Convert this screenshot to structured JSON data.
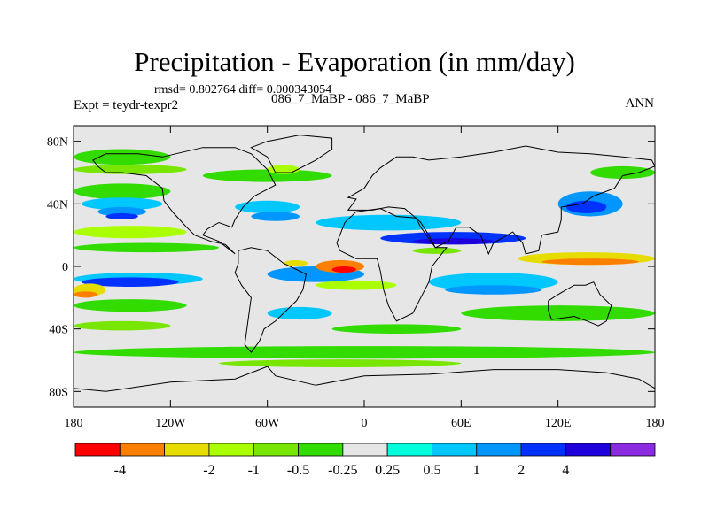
{
  "chart_data": {
    "type": "heatmap",
    "title": "Precipitation - Evaporation (in mm/day)",
    "stats_line": "rmsd= 0.802764 diff= 0.000343054",
    "expt_label": "Expt = teydr-texpr2",
    "case_label": "086_7_MaBP - 086_7_MaBP",
    "season": "ANN",
    "x_ticks": [
      {
        "value": -180,
        "label": "180"
      },
      {
        "value": -120,
        "label": "120W"
      },
      {
        "value": -60,
        "label": "60W"
      },
      {
        "value": 0,
        "label": "0"
      },
      {
        "value": 60,
        "label": "60E"
      },
      {
        "value": 120,
        "label": "120E"
      },
      {
        "value": 180,
        "label": "180"
      }
    ],
    "y_ticks": [
      {
        "value": 80,
        "label": "80N"
      },
      {
        "value": 40,
        "label": "40N"
      },
      {
        "value": 0,
        "label": "0"
      },
      {
        "value": -40,
        "label": "40S"
      },
      {
        "value": -80,
        "label": "80S"
      }
    ],
    "xlim": [
      -180,
      180
    ],
    "ylim": [
      -90,
      90
    ],
    "colorbar": {
      "colors": [
        "#ff0000",
        "#ff8000",
        "#e6dc00",
        "#aaff00",
        "#78e600",
        "#32dc00",
        "#e6e6e6",
        "#00ffdc",
        "#00c8ff",
        "#0096ff",
        "#0032ff",
        "#1e00dc",
        "#8a2be2"
      ],
      "labels": [
        "-4",
        "-2",
        "-1",
        "-0.5",
        "-0.25",
        "0.25",
        "0.5",
        "1",
        "2",
        "4"
      ],
      "label_boundaries": [
        1,
        3,
        4,
        5,
        6,
        7,
        8,
        9,
        10,
        11
      ]
    },
    "field": {
      "background_color": "#e6e6e6",
      "bands": [
        {
          "lat": 70,
          "lon0": -180,
          "lon1": -120,
          "dlat": 10,
          "color": "#32dc00"
        },
        {
          "lat": 62,
          "lon0": -180,
          "lon1": -110,
          "dlat": 6,
          "color": "#78e600"
        },
        {
          "lat": 48,
          "lon0": -180,
          "lon1": -120,
          "dlat": 10,
          "color": "#32dc00"
        },
        {
          "lat": 40,
          "lon0": -175,
          "lon1": -125,
          "dlat": 8,
          "color": "#00c8ff"
        },
        {
          "lat": 35,
          "lon0": -165,
          "lon1": -135,
          "dlat": 6,
          "color": "#0096ff"
        },
        {
          "lat": 32,
          "lon0": -160,
          "lon1": -140,
          "dlat": 4,
          "color": "#0032ff"
        },
        {
          "lat": 22,
          "lon0": -180,
          "lon1": -110,
          "dlat": 8,
          "color": "#aaff00"
        },
        {
          "lat": 12,
          "lon0": -180,
          "lon1": -90,
          "dlat": 6,
          "color": "#32dc00"
        },
        {
          "lat": 5,
          "lon0": -180,
          "lon1": -140,
          "dlat": 6,
          "color": "#e6e6e6"
        },
        {
          "lat": -8,
          "lon0": -180,
          "lon1": -100,
          "dlat": 8,
          "color": "#00c8ff"
        },
        {
          "lat": -10,
          "lon0": -175,
          "lon1": -115,
          "dlat": 6,
          "color": "#0032ff"
        },
        {
          "lat": -15,
          "lon0": -180,
          "lon1": -160,
          "dlat": 8,
          "color": "#e6dc00"
        },
        {
          "lat": -18,
          "lon0": -180,
          "lon1": -165,
          "dlat": 4,
          "color": "#ff8000"
        },
        {
          "lat": -25,
          "lon0": -180,
          "lon1": -110,
          "dlat": 8,
          "color": "#32dc00"
        },
        {
          "lat": -38,
          "lon0": -180,
          "lon1": -120,
          "dlat": 6,
          "color": "#78e600"
        },
        {
          "lat": -55,
          "lon0": -180,
          "lon1": 180,
          "dlat": 8,
          "color": "#32dc00"
        },
        {
          "lat": -62,
          "lon0": -90,
          "lon1": 60,
          "dlat": 5,
          "color": "#78e600"
        },
        {
          "lat": 58,
          "lon0": -100,
          "lon1": -20,
          "dlat": 8,
          "color": "#32dc00"
        },
        {
          "lat": 62,
          "lon0": -60,
          "lon1": -40,
          "dlat": 6,
          "color": "#aaff00"
        },
        {
          "lat": 38,
          "lon0": -80,
          "lon1": -40,
          "dlat": 8,
          "color": "#00c8ff"
        },
        {
          "lat": 32,
          "lon0": -70,
          "lon1": -40,
          "dlat": 6,
          "color": "#0096ff"
        },
        {
          "lat": 28,
          "lon0": -30,
          "lon1": 60,
          "dlat": 10,
          "color": "#00c8ff"
        },
        {
          "lat": 18,
          "lon0": 10,
          "lon1": 100,
          "dlat": 8,
          "color": "#0032ff"
        },
        {
          "lat": 16,
          "lon0": 30,
          "lon1": 80,
          "dlat": 4,
          "color": "#1e00dc"
        },
        {
          "lat": 40,
          "lon0": 120,
          "lon1": 160,
          "dlat": 16,
          "color": "#0096ff"
        },
        {
          "lat": 38,
          "lon0": 125,
          "lon1": 150,
          "dlat": 8,
          "color": "#0032ff"
        },
        {
          "lat": 60,
          "lon0": 140,
          "lon1": 180,
          "dlat": 8,
          "color": "#32dc00"
        },
        {
          "lat": 5,
          "lon0": 95,
          "lon1": 180,
          "dlat": 8,
          "color": "#e6dc00"
        },
        {
          "lat": 3,
          "lon0": 110,
          "lon1": 170,
          "dlat": 4,
          "color": "#ff8000"
        },
        {
          "lat": -10,
          "lon0": 40,
          "lon1": 120,
          "dlat": 12,
          "color": "#00c8ff"
        },
        {
          "lat": -15,
          "lon0": 50,
          "lon1": 110,
          "dlat": 6,
          "color": "#0096ff"
        },
        {
          "lat": -30,
          "lon0": 60,
          "lon1": 180,
          "dlat": 10,
          "color": "#32dc00"
        },
        {
          "lat": -20,
          "lon0": 120,
          "lon1": 180,
          "dlat": 8,
          "color": "#e6e6e6"
        },
        {
          "lat": -5,
          "lon0": -60,
          "lon1": 0,
          "dlat": 10,
          "color": "#0096ff"
        },
        {
          "lat": 0,
          "lon0": -30,
          "lon1": 0,
          "dlat": 8,
          "color": "#ff8000"
        },
        {
          "lat": -2,
          "lon0": -20,
          "lon1": -5,
          "dlat": 4,
          "color": "#ff0000"
        },
        {
          "lat": -30,
          "lon0": -60,
          "lon1": -20,
          "dlat": 8,
          "color": "#00c8ff"
        },
        {
          "lat": 2,
          "lon0": -50,
          "lon1": -35,
          "dlat": 4,
          "color": "#e6dc00"
        },
        {
          "lat": -12,
          "lon0": -30,
          "lon1": 20,
          "dlat": 6,
          "color": "#aaff00"
        },
        {
          "lat": -40,
          "lon0": -20,
          "lon1": 60,
          "dlat": 6,
          "color": "#32dc00"
        },
        {
          "lat": 10,
          "lon0": 30,
          "lon1": 60,
          "dlat": 4,
          "color": "#78e600"
        }
      ],
      "land_polygons": [
        [
          [
            -168,
            68
          ],
          [
            -160,
            72
          ],
          [
            -140,
            72
          ],
          [
            -125,
            70
          ],
          [
            -100,
            76
          ],
          [
            -80,
            76
          ],
          [
            -70,
            72
          ],
          [
            -60,
            62
          ],
          [
            -55,
            52
          ],
          [
            -68,
            45
          ],
          [
            -75,
            38
          ],
          [
            -80,
            30
          ],
          [
            -82,
            25
          ],
          [
            -90,
            28
          ],
          [
            -97,
            24
          ],
          [
            -100,
            20
          ],
          [
            -90,
            16
          ],
          [
            -85,
            12
          ],
          [
            -80,
            8
          ],
          [
            -86,
            14
          ],
          [
            -95,
            16
          ],
          [
            -105,
            20
          ],
          [
            -110,
            25
          ],
          [
            -118,
            34
          ],
          [
            -124,
            42
          ],
          [
            -125,
            50
          ],
          [
            -135,
            58
          ],
          [
            -150,
            60
          ],
          [
            -160,
            60
          ],
          [
            -165,
            64
          ]
        ],
        [
          [
            -78,
            10
          ],
          [
            -70,
            12
          ],
          [
            -60,
            10
          ],
          [
            -50,
            2
          ],
          [
            -36,
            -5
          ],
          [
            -38,
            -15
          ],
          [
            -42,
            -22
          ],
          [
            -48,
            -28
          ],
          [
            -55,
            -35
          ],
          [
            -62,
            -40
          ],
          [
            -65,
            -48
          ],
          [
            -70,
            -55
          ],
          [
            -74,
            -50
          ],
          [
            -72,
            -35
          ],
          [
            -70,
            -20
          ],
          [
            -76,
            -12
          ],
          [
            -80,
            -4
          ],
          [
            -78,
            2
          ]
        ],
        [
          [
            -55,
            60
          ],
          [
            -45,
            60
          ],
          [
            -30,
            68
          ],
          [
            -20,
            75
          ],
          [
            -20,
            82
          ],
          [
            -40,
            84
          ],
          [
            -60,
            80
          ],
          [
            -70,
            76
          ],
          [
            -60,
            70
          ]
        ],
        [
          [
            -10,
            36
          ],
          [
            -5,
            43
          ],
          [
            -10,
            44
          ],
          [
            0,
            50
          ],
          [
            5,
            58
          ],
          [
            10,
            63
          ],
          [
            20,
            70
          ],
          [
            30,
            70
          ],
          [
            40,
            68
          ],
          [
            60,
            70
          ],
          [
            80,
            73
          ],
          [
            100,
            77
          ],
          [
            120,
            73
          ],
          [
            140,
            72
          ],
          [
            160,
            70
          ],
          [
            178,
            68
          ],
          [
            180,
            64
          ],
          [
            170,
            60
          ],
          [
            160,
            58
          ],
          [
            155,
            50
          ],
          [
            142,
            45
          ],
          [
            135,
            40
          ],
          [
            122,
            38
          ],
          [
            122,
            30
          ],
          [
            120,
            22
          ],
          [
            110,
            20
          ],
          [
            108,
            10
          ],
          [
            100,
            8
          ],
          [
            98,
            15
          ],
          [
            92,
            22
          ],
          [
            80,
            15
          ],
          [
            77,
            8
          ],
          [
            72,
            20
          ],
          [
            65,
            25
          ],
          [
            57,
            25
          ],
          [
            52,
            16
          ],
          [
            44,
            12
          ],
          [
            40,
            20
          ],
          [
            35,
            28
          ],
          [
            32,
            31
          ],
          [
            25,
            37
          ],
          [
            15,
            38
          ],
          [
            5,
            36
          ]
        ],
        [
          [
            -17,
            15
          ],
          [
            -12,
            28
          ],
          [
            -5,
            35
          ],
          [
            10,
            37
          ],
          [
            20,
            32
          ],
          [
            32,
            31
          ],
          [
            35,
            25
          ],
          [
            44,
            12
          ],
          [
            51,
            12
          ],
          [
            42,
            0
          ],
          [
            40,
            -10
          ],
          [
            35,
            -20
          ],
          [
            30,
            -30
          ],
          [
            20,
            -35
          ],
          [
            15,
            -25
          ],
          [
            12,
            -15
          ],
          [
            10,
            -3
          ],
          [
            8,
            5
          ],
          [
            -5,
            5
          ],
          [
            -15,
            10
          ]
        ],
        [
          [
            114,
            -22
          ],
          [
            120,
            -18
          ],
          [
            130,
            -12
          ],
          [
            137,
            -12
          ],
          [
            142,
            -10
          ],
          [
            146,
            -18
          ],
          [
            153,
            -25
          ],
          [
            150,
            -35
          ],
          [
            145,
            -38
          ],
          [
            138,
            -35
          ],
          [
            130,
            -32
          ],
          [
            116,
            -34
          ],
          [
            114,
            -28
          ]
        ],
        [
          [
            -180,
            -78
          ],
          [
            -160,
            -80
          ],
          [
            -120,
            -74
          ],
          [
            -80,
            -72
          ],
          [
            -60,
            -64
          ],
          [
            -55,
            -70
          ],
          [
            -30,
            -76
          ],
          [
            0,
            -70
          ],
          [
            40,
            -69
          ],
          [
            80,
            -66
          ],
          [
            120,
            -66
          ],
          [
            150,
            -68
          ],
          [
            170,
            -72
          ],
          [
            180,
            -78
          ],
          [
            180,
            -90
          ],
          [
            -180,
            -90
          ]
        ]
      ]
    }
  }
}
